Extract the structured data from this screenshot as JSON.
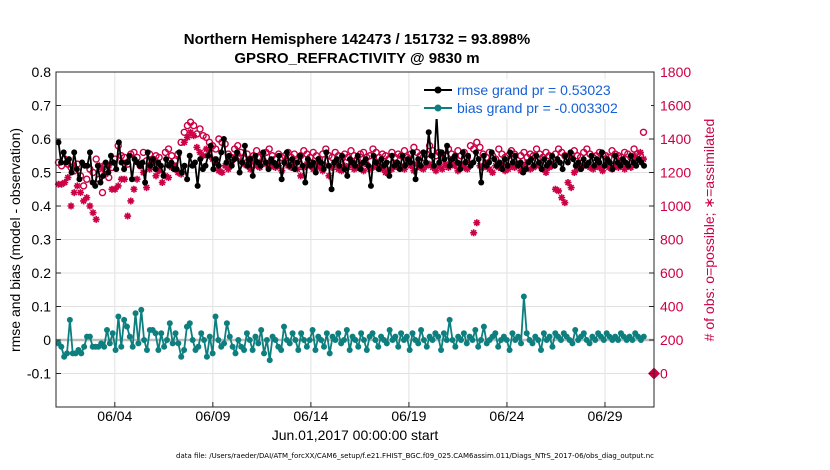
{
  "chart_data": {
    "type": "line",
    "title_line1": "Northern Hemisphere 142473 / 151732 = 93.898%",
    "title_line2": "GPSRO_REFRACTIVITY @ 9830 m",
    "xlabel": "Jun.01,2017 00:00:00 start",
    "ylabel_left": "rmse and bias (model - observation)",
    "ylabel_right": "# of obs: o=possible; ∗=assimilated",
    "ylim_left": [
      -0.2,
      0.8
    ],
    "ylim_right": [
      -200,
      1800
    ],
    "xlim": [
      1,
      31.5
    ],
    "x_ticks": [
      4,
      9,
      14,
      19,
      24,
      29
    ],
    "x_tick_labels": [
      "06/04",
      "06/09",
      "06/14",
      "06/19",
      "06/24",
      "06/29"
    ],
    "y_left_ticks": [
      -0.1,
      0,
      0.1,
      0.2,
      0.3,
      0.4,
      0.5,
      0.6,
      0.7,
      0.8
    ],
    "y_left_tick_labels": [
      "-0.1",
      "0",
      "0.1",
      "0.2",
      "0.3",
      "0.4",
      "0.5",
      "0.6",
      "0.7",
      "0.8"
    ],
    "y_right_ticks": [
      0,
      200,
      400,
      600,
      800,
      1000,
      1200,
      1400,
      1600,
      1800
    ],
    "y_right_tick_labels": [
      "0",
      "200",
      "400",
      "600",
      "800",
      "1000",
      "1200",
      "1400",
      "1600",
      "1800"
    ],
    "legend": [
      {
        "label": "rmse grand pr = 0.53023",
        "color": "#000000",
        "series": "rmse"
      },
      {
        "label": "bias grand pr = -0.003302",
        "color": "#0e7f7f",
        "series": "bias"
      }
    ],
    "series": [
      {
        "name": "rmse",
        "axis": "left",
        "color": "#000000",
        "marker": "filled-circle",
        "values": [
          0.59,
          0.53,
          0.56,
          0.53,
          0.54,
          0.5,
          0.56,
          0.51,
          0.48,
          0.53,
          0.52,
          0.52,
          0.56,
          0.47,
          0.46,
          0.52,
          0.47,
          0.49,
          0.53,
          0.5,
          0.55,
          0.53,
          0.51,
          0.59,
          0.53,
          0.51,
          0.53,
          0.55,
          0.48,
          0.54,
          0.53,
          0.52,
          0.53,
          0.47,
          0.56,
          0.52,
          0.54,
          0.51,
          0.53,
          0.52,
          0.49,
          0.54,
          0.52,
          0.53,
          0.51,
          0.51,
          0.56,
          0.5,
          0.52,
          0.48,
          0.55,
          0.52,
          0.53,
          0.46,
          0.54,
          0.51,
          0.52,
          0.55,
          0.58,
          0.51,
          0.54,
          0.52,
          0.56,
          0.6,
          0.53,
          0.55,
          0.52,
          0.54,
          0.56,
          0.5,
          0.53,
          0.58,
          0.52,
          0.54,
          0.49,
          0.55,
          0.53,
          0.52,
          0.56,
          0.53,
          0.51,
          0.54,
          0.53,
          0.52,
          0.55,
          0.48,
          0.53,
          0.56,
          0.52,
          0.54,
          0.51,
          0.53,
          0.55,
          0.52,
          0.47,
          0.54,
          0.52,
          0.53,
          0.5,
          0.54,
          0.53,
          0.51,
          0.56,
          0.52,
          0.45,
          0.53,
          0.54,
          0.52,
          0.55,
          0.51,
          0.49,
          0.54,
          0.53,
          0.52,
          0.55,
          0.51,
          0.53,
          0.54,
          0.52,
          0.46,
          0.55,
          0.53,
          0.51,
          0.54,
          0.52,
          0.53,
          0.49,
          0.55,
          0.52,
          0.53,
          0.51,
          0.55,
          0.52,
          0.54,
          0.53,
          0.56,
          0.48,
          0.54,
          0.52,
          0.56,
          0.53,
          0.62,
          0.55,
          0.52,
          0.67,
          0.53,
          0.56,
          0.54,
          0.58,
          0.52,
          0.54,
          0.55,
          0.53,
          0.51,
          0.56,
          0.53,
          0.55,
          0.52,
          0.53,
          0.56,
          0.54,
          0.47,
          0.55,
          0.52,
          0.53,
          0.56,
          0.54,
          0.52,
          0.53,
          0.51,
          0.54,
          0.52,
          0.56,
          0.53,
          0.55,
          0.52,
          0.53,
          0.5,
          0.51,
          0.53,
          0.54,
          0.52,
          0.55,
          0.53,
          0.51,
          0.54,
          0.52,
          0.53,
          0.55,
          0.52,
          0.54,
          0.53,
          0.51,
          0.55,
          0.53,
          0.56,
          0.54,
          0.52,
          0.53,
          0.51,
          0.54,
          0.52,
          0.53,
          0.55,
          0.52,
          0.54,
          0.53,
          0.56,
          0.52,
          0.54,
          0.53,
          0.51,
          0.55,
          0.53,
          0.52,
          0.54,
          0.53,
          0.52,
          0.55,
          0.53,
          0.52,
          0.54,
          0.53,
          0.52
        ]
      },
      {
        "name": "bias",
        "axis": "left",
        "color": "#0e7f7f",
        "marker": "filled-circle",
        "values": [
          -0.01,
          -0.02,
          -0.05,
          -0.04,
          0.06,
          -0.04,
          -0.04,
          -0.03,
          -0.04,
          -0.02,
          0.01,
          0.01,
          -0.02,
          -0.02,
          -0.02,
          -0.01,
          -0.02,
          0.03,
          -0.01,
          0.02,
          -0.03,
          0.07,
          -0.02,
          0.06,
          0.04,
          0.01,
          -0.02,
          0.08,
          -0.01,
          0.09,
          0.0,
          -0.03,
          0.03,
          0.03,
          0.02,
          -0.03,
          0.02,
          -0.02,
          0.0,
          0.05,
          -0.01,
          0.02,
          -0.01,
          -0.05,
          -0.03,
          0.04,
          0.05,
          0.0,
          -0.03,
          -0.02,
          0.02,
          0.0,
          -0.05,
          0.01,
          -0.04,
          0.07,
          0.0,
          -0.02,
          -0.01,
          0.05,
          0.01,
          -0.02,
          -0.04,
          0.0,
          -0.02,
          -0.03,
          0.02,
          0.0,
          -0.03,
          0.01,
          -0.01,
          0.03,
          -0.04,
          0.0,
          -0.06,
          0.01,
          0.0,
          -0.02,
          -0.03,
          0.04,
          0.0,
          -0.01,
          0.02,
          0.0,
          -0.03,
          0.02,
          0.0,
          -0.02,
          0.0,
          0.03,
          -0.03,
          0.01,
          0.0,
          -0.02,
          0.02,
          -0.04,
          0.01,
          0.0,
          0.02,
          -0.01,
          0.0,
          0.03,
          -0.03,
          0.01,
          0.0,
          -0.02,
          0.02,
          0.0,
          -0.03,
          0.01,
          0.02,
          0.0,
          -0.02,
          0.01,
          0.0,
          -0.01,
          0.03,
          0.0,
          0.01,
          -0.02,
          0.02,
          0.0,
          0.01,
          -0.03,
          0.02,
          0.0,
          -0.01,
          0.03,
          0.0,
          -0.02,
          0.01,
          0.0,
          0.02,
          0.01,
          -0.03,
          0.02,
          0.0,
          0.06,
          0.0,
          -0.02,
          0.01,
          0.0,
          0.02,
          -0.01,
          0.01,
          0.0,
          0.03,
          -0.02,
          0.0,
          0.04,
          -0.01,
          0.0,
          0.01,
          0.02,
          -0.02,
          0.0,
          0.01,
          0.0,
          -0.03,
          0.02,
          0.0,
          0.01,
          -0.01,
          0.13,
          0.02,
          0.0,
          -0.01,
          0.01,
          0.0,
          -0.03,
          0.02,
          0.0,
          0.01,
          -0.02,
          0.02,
          0.01,
          0.0,
          0.02,
          0.01,
          0.0,
          -0.01,
          0.03,
          0.0,
          0.01,
          0.02,
          0.0,
          -0.01,
          0.01,
          0.0,
          0.02,
          0.01,
          0.0,
          0.02,
          0.01,
          0.0,
          0.01,
          0.0,
          0.02,
          0.01,
          0.0,
          0.01,
          0.0,
          0.02,
          0.01,
          0.0,
          0.01
        ]
      },
      {
        "name": "obs possible",
        "axis": "right",
        "color": "#cc0044",
        "marker": "open-circle",
        "values": [
          1260,
          1240,
          1280,
          1250,
          1230,
          1210,
          1250,
          1180,
          1120,
          1160,
          1220,
          1200,
          1280,
          1160,
          1080,
          1250,
          1170,
          1230,
          1280,
          1360,
          1300,
          1290,
          1250,
          1310,
          1320,
          1290,
          1240,
          1320,
          1270,
          1310,
          1280,
          1300,
          1290,
          1220,
          1320,
          1340,
          1300,
          1270,
          1310,
          1380,
          1440,
          1480,
          1500,
          1480,
          1430,
          1460,
          1420,
          1410,
          1380,
          1360,
          1340,
          1400,
          1380,
          1370,
          1310,
          1290,
          1340,
          1360,
          1320,
          1290,
          1310,
          1280,
          1300,
          1330,
          1290,
          1310,
          1320,
          1340,
          1300,
          1280,
          1310,
          1290,
          1300,
          1320,
          1290,
          1310,
          1270,
          1300,
          1330,
          1310,
          1290,
          1320,
          1300,
          1280,
          1310,
          1340,
          1300,
          1290,
          1320,
          1300,
          1280,
          1310,
          1290,
          1330,
          1300,
          1280,
          1310,
          1320,
          1290,
          1300,
          1340,
          1320,
          1290,
          1310,
          1300,
          1280,
          1320,
          1290,
          1310,
          1300,
          1330,
          1290,
          1310,
          1350,
          1320,
          1300,
          1290,
          1310,
          1360,
          1330,
          1300,
          1320,
          1290,
          1300,
          1340,
          1310,
          1290,
          1330,
          1300,
          1320,
          1290,
          1360,
          1340,
          1380,
          1350,
          1310,
          1290,
          1320,
          1300,
          1280,
          1340,
          1310,
          1290,
          1300,
          1330,
          1310,
          1270,
          1300,
          1320,
          1290,
          1310,
          1300,
          1340,
          1310,
          1290,
          1320,
          1300,
          1280,
          1310,
          1340,
          1320,
          1300,
          1290,
          1310,
          1330,
          1300,
          1290,
          1320,
          1340,
          1310,
          1290,
          1300,
          1320,
          1310,
          1300,
          1290,
          1330,
          1310,
          1300,
          1290,
          1320,
          1310,
          1290,
          1340,
          1310,
          1300,
          1440
        ]
      },
      {
        "name": "obs assimilated",
        "axis": "right",
        "color": "#cc0044",
        "marker": "asterisk",
        "values": [
          1130,
          1130,
          1140,
          1170,
          1000,
          1080,
          1120,
          1080,
          1030,
          1050,
          1000,
          960,
          920,
          1240,
          1220,
          1190,
          1240,
          1100,
          1100,
          1120,
          1160,
          1160,
          940,
          1030,
          1100,
          1160,
          1240,
          1200,
          1110,
          1220,
          1250,
          1180,
          1210,
          1140,
          1180,
          1170,
          1230,
          1240,
          1200,
          1190,
          1380,
          1410,
          1440,
          1420,
          1350,
          1320,
          1300,
          1340,
          1330,
          1280,
          1260,
          1210,
          1200,
          1240,
          1220,
          1260,
          1290,
          1310,
          1270,
          1250,
          1240,
          1220,
          1260,
          1240,
          1230,
          1280,
          1250,
          1260,
          1240,
          1230,
          1240,
          1210,
          1270,
          1240,
          1230,
          1260,
          1220,
          1180,
          1230,
          1250,
          1240,
          1220,
          1250,
          1230,
          1210,
          1240,
          1180,
          1230,
          1250,
          1220,
          1210,
          1240,
          1230,
          1250,
          1220,
          1230,
          1240,
          1210,
          1250,
          1220,
          1230,
          1240,
          1250,
          1220,
          1200,
          1210,
          1220,
          1250,
          1230,
          1240,
          1220,
          1260,
          1240,
          1210,
          1250,
          1230,
          1220,
          1240,
          1250,
          1230,
          1210,
          1240,
          1220,
          1250,
          1230,
          1260,
          1240,
          1210,
          1250,
          1230,
          1220,
          1250,
          840,
          900,
          1240,
          1230,
          1250,
          1220,
          1200,
          1240,
          1230,
          1250,
          1210,
          1220,
          1240,
          1230,
          1250,
          1210,
          1240,
          1260,
          1220,
          1230,
          1240,
          1250,
          1220,
          1200,
          1230,
          1240,
          1100,
          1090,
          1050,
          1020,
          1140,
          1110,
          1200,
          1220,
          1230,
          1240,
          1250,
          1230,
          1220,
          1240,
          1230,
          1210,
          1250,
          1230,
          1220,
          1240,
          1230,
          1250,
          1220,
          1240,
          1230,
          1300,
          1280,
          1320,
          1280
        ]
      },
      {
        "name": "right-axis zero marker",
        "axis": "right",
        "color": "#cc0044",
        "marker": "diamond",
        "points": [
          [
            31.5,
            0
          ]
        ]
      }
    ]
  },
  "footer": {
    "data_file": "data file: /Users/raeder/DAI/ATM_forcXX/CAM6_setup/f.e21.FHIST_BGC.f09_025.CAM6assim.011/Diags_NTrS_2017-06/obs_diag_output.nc"
  }
}
